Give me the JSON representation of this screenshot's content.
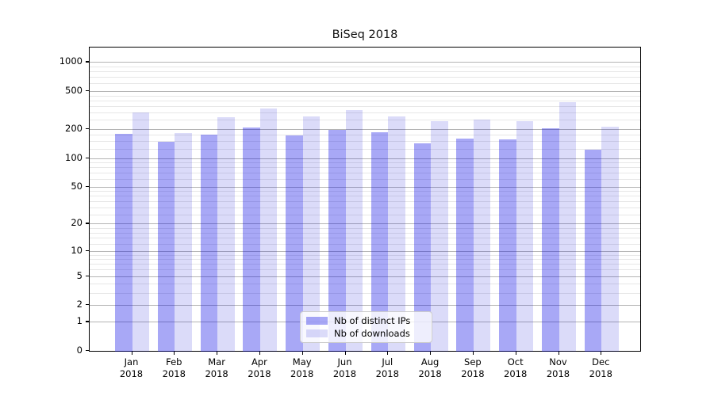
{
  "chart_data": {
    "type": "bar",
    "title": "BiSeq 2018",
    "categories": [
      "Jan",
      "Feb",
      "Mar",
      "Apr",
      "May",
      "Jun",
      "Jul",
      "Aug",
      "Sep",
      "Oct",
      "Nov",
      "Dec"
    ],
    "category_year": "2018",
    "series": [
      {
        "name": "Nb of distinct IPs",
        "color": "rgba(0,0,230,0.34)",
        "values": [
          178,
          148,
          175,
          208,
          172,
          196,
          185,
          142,
          160,
          156,
          203,
          123
        ]
      },
      {
        "name": "Nb of downloads",
        "color": "rgba(0,0,210,0.14)",
        "values": [
          300,
          181,
          268,
          327,
          274,
          318,
          270,
          244,
          254,
          241,
          385,
          212
        ]
      }
    ],
    "y_axis": {
      "scale": "log1p",
      "major_ticks": [
        0,
        1,
        2,
        5,
        10,
        20,
        50,
        100,
        200,
        500,
        1000
      ],
      "minor_ticks": [
        3,
        4,
        6,
        7,
        8,
        9,
        12,
        14,
        16,
        18,
        25,
        30,
        35,
        40,
        45,
        60,
        70,
        80,
        90,
        125,
        150,
        175,
        250,
        300,
        350,
        400,
        450,
        600,
        700,
        800,
        900
      ],
      "ylim": [
        0,
        1450
      ]
    },
    "xlabel": "",
    "ylabel": "",
    "grid": true,
    "legend_position": "bottom-center",
    "colors": {
      "major_grid": "#b4b4b4",
      "minor_grid": "#e7e7e7",
      "spine": "#000000",
      "background": "#ffffff"
    }
  }
}
